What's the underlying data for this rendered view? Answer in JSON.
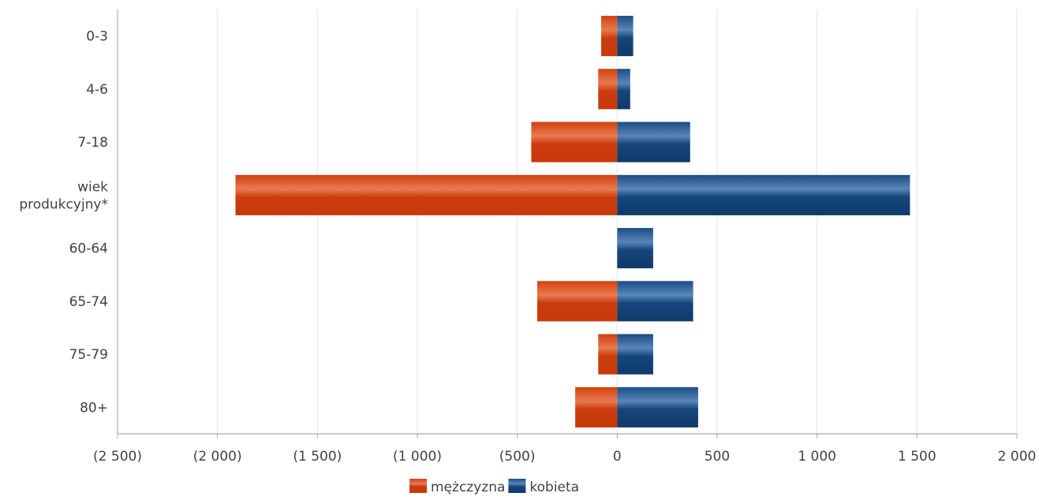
{
  "chart_data": {
    "type": "bar",
    "orientation": "horizontal",
    "stacked": true,
    "categories": [
      "0-3",
      "4-6",
      "7-18",
      "wiek produkcyjny*",
      "60-64",
      "65-74",
      "75-79",
      "80+"
    ],
    "category_lines": [
      [
        "0-3"
      ],
      [
        "4-6"
      ],
      [
        "7-18"
      ],
      [
        "wiek",
        "produkcyjny*"
      ],
      [
        "60-64"
      ],
      [
        "65-74"
      ],
      [
        "75-79"
      ],
      [
        "80+"
      ]
    ],
    "series": [
      {
        "name": "mężczyzna",
        "color": "#d2400f",
        "values": [
          -80,
          -95,
          -430,
          -1910,
          0,
          -400,
          -95,
          -210
        ]
      },
      {
        "name": "kobieta",
        "color": "#0f3f72",
        "values": [
          80,
          65,
          365,
          1465,
          180,
          380,
          180,
          405
        ]
      }
    ],
    "xlim": [
      -2500,
      2000
    ],
    "x_ticks": [
      -2500,
      -2000,
      -1500,
      -1000,
      -500,
      0,
      500,
      1000,
      1500,
      2000
    ],
    "x_tick_labels": [
      "(2 500)",
      "(2 000)",
      "(1 500)",
      "(1 000)",
      "(500)",
      "0",
      "500",
      "1 000",
      "1 500",
      "2 000"
    ],
    "grid": true,
    "legend": {
      "position": "bottom",
      "entries": [
        "mężczyzna",
        "kobieta"
      ]
    }
  }
}
